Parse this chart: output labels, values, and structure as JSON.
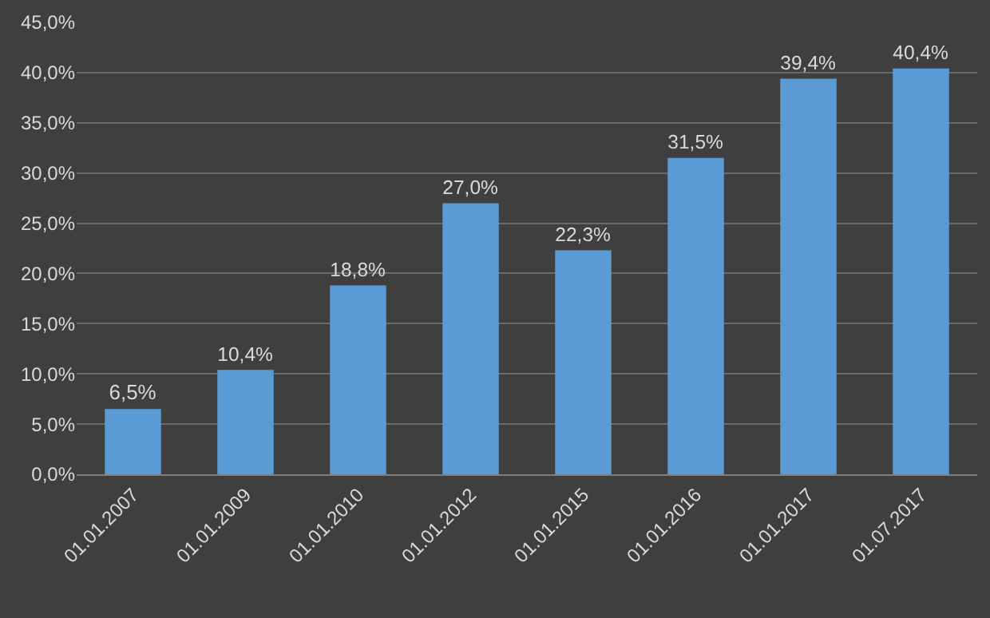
{
  "chart_data": {
    "type": "bar",
    "categories": [
      "01.01.2007",
      "01.01.2009",
      "01.01.2010",
      "01.01.2012",
      "01.01.2015",
      "01.01.2016",
      "01.01.2017",
      "01.07.2017"
    ],
    "values": [
      6.5,
      10.4,
      18.8,
      27.0,
      22.3,
      31.5,
      39.4,
      40.4
    ],
    "value_labels": [
      "6,5%",
      "10,4%",
      "18,8%",
      "27,0%",
      "22,3%",
      "31,5%",
      "39,4%",
      "40,4%"
    ],
    "color": "#5b9bd5",
    "ylim": [
      0,
      45
    ],
    "yticks": [
      {
        "value": 0,
        "label": "0,0%"
      },
      {
        "value": 5,
        "label": "5,0%"
      },
      {
        "value": 10,
        "label": "10,0%"
      },
      {
        "value": 15,
        "label": "15,0%"
      },
      {
        "value": 20,
        "label": "20,0%"
      },
      {
        "value": 25,
        "label": "25,0%"
      },
      {
        "value": 30,
        "label": "30,0%"
      },
      {
        "value": 35,
        "label": "35,0%"
      },
      {
        "value": 40,
        "label": "40,0%"
      },
      {
        "value": 45,
        "label": "45,0%"
      }
    ],
    "grid": "y"
  }
}
